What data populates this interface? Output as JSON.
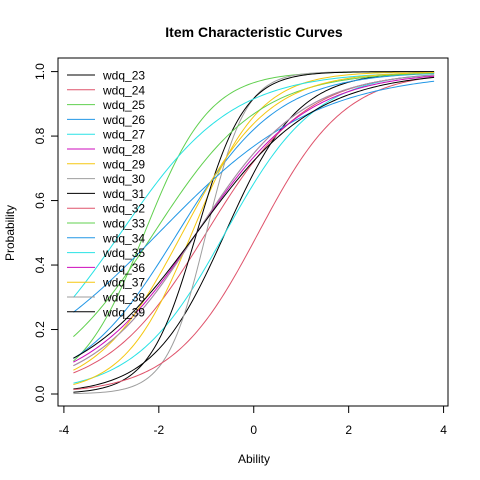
{
  "chart_data": {
    "type": "line",
    "title": "Item Characteristic Curves",
    "xlabel": "Ability",
    "ylabel": "Probability",
    "xlim": [
      -4,
      4
    ],
    "ylim": [
      0,
      1
    ],
    "x_range": [
      -3.8,
      3.8
    ],
    "xticks": [
      "-4",
      "-2",
      "0",
      "2",
      "4"
    ],
    "yticks": [
      "0.0",
      "0.2",
      "0.4",
      "0.6",
      "0.8",
      "1.0"
    ],
    "legend_position": "top-left",
    "model": "2PL logistic: P = 1/(1+exp(-a(x-b)))",
    "series": [
      {
        "name": "wdq_23",
        "color": "#000000",
        "a": 1.3,
        "b": -0.6
      },
      {
        "name": "wdq_24",
        "color": "#DF536B",
        "a": 0.95,
        "b": -1.0
      },
      {
        "name": "wdq_25",
        "color": "#61D04F",
        "a": 1.45,
        "b": -2.3
      },
      {
        "name": "wdq_26",
        "color": "#2297E6",
        "a": 0.95,
        "b": -1.6
      },
      {
        "name": "wdq_27",
        "color": "#28E2E5",
        "a": 1.05,
        "b": -0.6
      },
      {
        "name": "wdq_28",
        "color": "#CD0BBC",
        "a": 0.9,
        "b": -1.2
      },
      {
        "name": "wdq_29",
        "color": "#F5C710",
        "a": 1.4,
        "b": -1.3
      },
      {
        "name": "wdq_30",
        "color": "#9E9E9E",
        "a": 2.4,
        "b": -1.0
      },
      {
        "name": "wdq_31",
        "color": "#000000",
        "a": 2.0,
        "b": -1.2
      },
      {
        "name": "wdq_32",
        "color": "#DF536B",
        "a": 1.1,
        "b": 0.1
      },
      {
        "name": "wdq_33",
        "color": "#61D04F",
        "a": 0.9,
        "b": -2.1
      },
      {
        "name": "wdq_34",
        "color": "#2297E6",
        "a": 0.6,
        "b": -2.0
      },
      {
        "name": "wdq_35",
        "color": "#28E2E5",
        "a": 0.85,
        "b": -2.8
      },
      {
        "name": "wdq_36",
        "color": "#CD0BBC",
        "a": 0.85,
        "b": -1.2
      },
      {
        "name": "wdq_37",
        "color": "#F5C710",
        "a": 1.1,
        "b": -1.5
      },
      {
        "name": "wdq_38",
        "color": "#9E9E9E",
        "a": 0.9,
        "b": -1.2
      },
      {
        "name": "wdq_39",
        "color": "#000000",
        "a": 0.8,
        "b": -1.2
      }
    ]
  }
}
